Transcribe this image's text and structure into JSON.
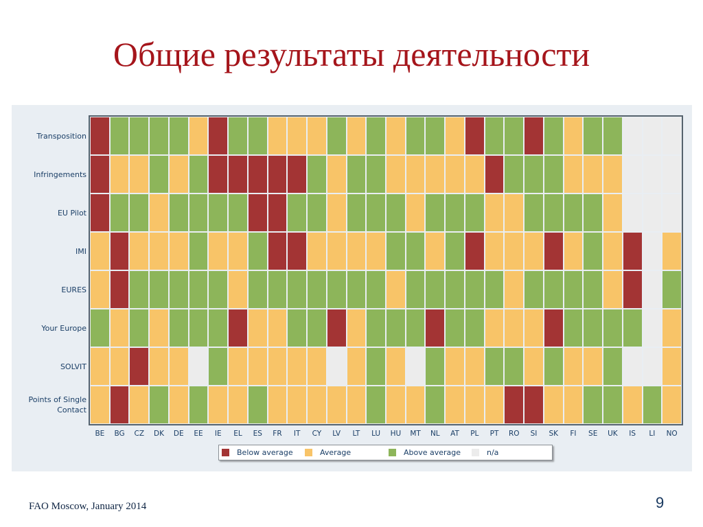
{
  "slide": {
    "title": "Общие результаты деятельности",
    "footer": "FAO Moscow, January 2014",
    "page_number": "9"
  },
  "colors": {
    "B": "#a33434",
    "A": "#f8c468",
    "G": "#8db55a",
    "N": "#ececec",
    "title": "#a5151b",
    "label": "#1a3e66"
  },
  "chart_data": {
    "type": "heatmap",
    "rows": [
      "Transposition",
      "Infringements",
      "EU Pilot",
      "IMI",
      "EURES",
      "Your Europe",
      "SOLVIT",
      "Points of Single Contact"
    ],
    "columns": [
      "BE",
      "BG",
      "CZ",
      "DK",
      "DE",
      "EE",
      "IE",
      "EL",
      "ES",
      "FR",
      "IT",
      "CY",
      "LV",
      "LT",
      "LU",
      "HU",
      "MT",
      "NL",
      "AT",
      "PL",
      "PT",
      "RO",
      "SI",
      "SK",
      "FI",
      "SE",
      "UK",
      "IS",
      "LI",
      "NO"
    ],
    "values": [
      [
        "B",
        "G",
        "G",
        "G",
        "G",
        "A",
        "B",
        "G",
        "G",
        "A",
        "A",
        "A",
        "G",
        "A",
        "G",
        "A",
        "G",
        "G",
        "A",
        "B",
        "G",
        "G",
        "B",
        "G",
        "A",
        "G",
        "G",
        "N",
        "N",
        "N"
      ],
      [
        "B",
        "A",
        "A",
        "G",
        "A",
        "G",
        "B",
        "B",
        "B",
        "B",
        "B",
        "G",
        "A",
        "G",
        "G",
        "A",
        "A",
        "A",
        "A",
        "A",
        "B",
        "G",
        "G",
        "G",
        "A",
        "A",
        "A",
        "N",
        "N",
        "N"
      ],
      [
        "B",
        "G",
        "G",
        "A",
        "G",
        "G",
        "G",
        "G",
        "B",
        "B",
        "G",
        "G",
        "A",
        "G",
        "G",
        "G",
        "A",
        "G",
        "G",
        "G",
        "A",
        "A",
        "G",
        "G",
        "G",
        "G",
        "A",
        "N",
        "N",
        "N"
      ],
      [
        "A",
        "B",
        "A",
        "A",
        "A",
        "G",
        "A",
        "A",
        "G",
        "B",
        "B",
        "A",
        "A",
        "A",
        "A",
        "G",
        "G",
        "A",
        "G",
        "B",
        "A",
        "A",
        "A",
        "B",
        "A",
        "G",
        "A",
        "B",
        "N",
        "A"
      ],
      [
        "A",
        "B",
        "G",
        "G",
        "G",
        "G",
        "G",
        "A",
        "G",
        "G",
        "G",
        "G",
        "G",
        "G",
        "G",
        "A",
        "G",
        "G",
        "G",
        "G",
        "G",
        "A",
        "G",
        "G",
        "G",
        "G",
        "A",
        "B",
        "N",
        "G"
      ],
      [
        "G",
        "A",
        "G",
        "A",
        "G",
        "G",
        "G",
        "B",
        "A",
        "A",
        "G",
        "G",
        "B",
        "A",
        "G",
        "G",
        "G",
        "B",
        "G",
        "G",
        "A",
        "A",
        "A",
        "B",
        "G",
        "G",
        "G",
        "G",
        "N",
        "A"
      ],
      [
        "A",
        "A",
        "B",
        "A",
        "A",
        "N",
        "G",
        "A",
        "A",
        "A",
        "A",
        "A",
        "N",
        "A",
        "G",
        "A",
        "N",
        "G",
        "A",
        "A",
        "G",
        "G",
        "A",
        "G",
        "A",
        "A",
        "G",
        "N",
        "N",
        "A"
      ],
      [
        "A",
        "B",
        "A",
        "G",
        "A",
        "G",
        "A",
        "A",
        "G",
        "A",
        "A",
        "A",
        "A",
        "A",
        "G",
        "A",
        "A",
        "G",
        "A",
        "A",
        "A",
        "B",
        "B",
        "A",
        "A",
        "G",
        "G",
        "A",
        "G",
        "A"
      ]
    ],
    "legend": [
      {
        "key": "B",
        "label": "Below average"
      },
      {
        "key": "A",
        "label": "Average"
      },
      {
        "key": "G",
        "label": "Above average"
      },
      {
        "key": "N",
        "label": "n/a"
      }
    ]
  }
}
